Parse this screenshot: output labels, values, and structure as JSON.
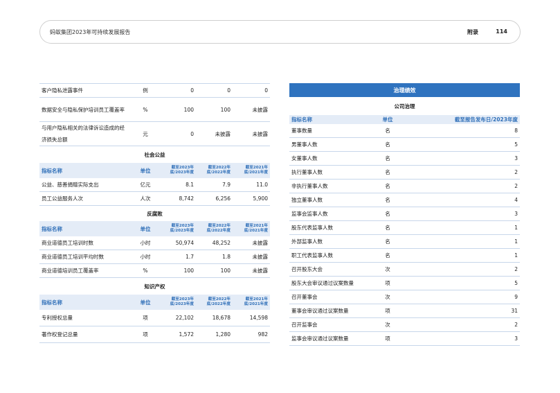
{
  "header": {
    "title": "蚂蚁集团2023年可持续发展报告",
    "section": "附录",
    "page": "114"
  },
  "left": {
    "privacy_rows": [
      {
        "name": "客户隐私泄露事件",
        "unit": "例",
        "v": [
          "0",
          "0",
          "0"
        ]
      },
      {
        "name": "数据安全与隐私保护培训员工覆盖率",
        "unit": "%",
        "v": [
          "100",
          "100",
          "未披露"
        ]
      },
      {
        "name": "与用户隐私相关的法律诉讼造成的经济损失总额",
        "unit": "元",
        "v": [
          "0",
          "未披露",
          "未披露"
        ]
      }
    ],
    "columns": {
      "name": "指标名称",
      "unit": "单位",
      "y2023": "截至2023年底/2023年度",
      "y2022": "截至2022年底/2022年度",
      "y2021": "截至2021年底/2021年度"
    },
    "sections": [
      {
        "title": "社会公益",
        "rows": [
          {
            "name": "公益、慈善捐赠实际支出",
            "unit": "亿元",
            "v": [
              "8.1",
              "7.9",
              "11.0"
            ]
          },
          {
            "name": "员工公益服务人次",
            "unit": "人次",
            "v": [
              "8,742",
              "6,256",
              "5,900"
            ]
          }
        ]
      },
      {
        "title": "反腐败",
        "rows": [
          {
            "name": "商业道德员工培训时数",
            "unit": "小时",
            "v": [
              "50,974",
              "48,252",
              "未披露"
            ]
          },
          {
            "name": "商业道德员工培训平均时数",
            "unit": "小时",
            "v": [
              "1.7",
              "1.8",
              "未披露"
            ]
          },
          {
            "name": "商业道德培训员工覆盖率",
            "unit": "%",
            "v": [
              "100",
              "100",
              "未披露"
            ]
          }
        ]
      },
      {
        "title": "知识产权",
        "rows": [
          {
            "name": "专利授权总量",
            "unit": "项",
            "v": [
              "22,102",
              "18,678",
              "14,598"
            ]
          },
          {
            "name": "著作权登记总量",
            "unit": "项",
            "v": [
              "1,572",
              "1,280",
              "982"
            ]
          }
        ]
      }
    ]
  },
  "right": {
    "band": "治理绩效",
    "title": "公司治理",
    "columns": {
      "name": "指标名称",
      "unit": "单位",
      "value": "截至报告发布日/2023年度"
    },
    "rows": [
      {
        "name": "董事数量",
        "unit": "名",
        "value": "8"
      },
      {
        "name": "男董事人数",
        "unit": "名",
        "value": "5"
      },
      {
        "name": "女董事人数",
        "unit": "名",
        "value": "3"
      },
      {
        "name": "执行董事人数",
        "unit": "名",
        "value": "2"
      },
      {
        "name": "非执行董事人数",
        "unit": "名",
        "value": "2"
      },
      {
        "name": "独立董事人数",
        "unit": "名",
        "value": "4"
      },
      {
        "name": "监事会监事人数",
        "unit": "名",
        "value": "3"
      },
      {
        "name": "股东代表监事人数",
        "unit": "名",
        "value": "1"
      },
      {
        "name": "外部监事人数",
        "unit": "名",
        "value": "1"
      },
      {
        "name": "职工代表监事人数",
        "unit": "名",
        "value": "1"
      },
      {
        "name": "召开股东大会",
        "unit": "次",
        "value": "2"
      },
      {
        "name": "股东大会审议通过议案数量",
        "unit": "项",
        "value": "5"
      },
      {
        "name": "召开董事会",
        "unit": "次",
        "value": "9"
      },
      {
        "name": "董事会审议通过议案数量",
        "unit": "项",
        "value": "31"
      },
      {
        "name": "召开监事会",
        "unit": "次",
        "value": "2"
      },
      {
        "name": "监事会审议通过议案数量",
        "unit": "项",
        "value": "3"
      }
    ]
  }
}
